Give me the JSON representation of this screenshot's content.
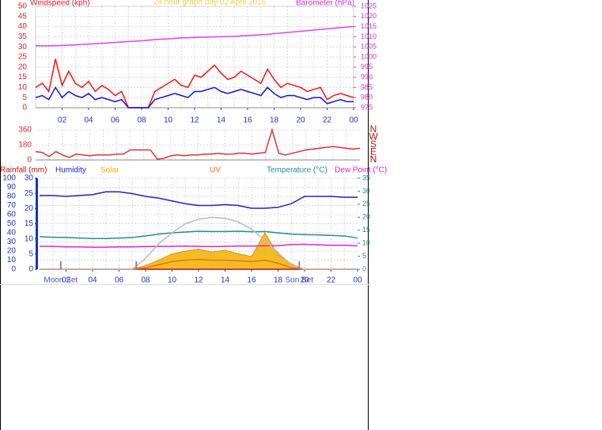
{
  "chart_data": [
    {
      "type": "line",
      "title": "24 hour graph day 02 April 2016",
      "title_color": "#e6d24a",
      "ylabel": "Windspeed (kph)",
      "ycolor": "#e0202a",
      "y2label": "Barometer (hPa)",
      "y2color": "#d030d0",
      "xcolor": "#2030c0",
      "xlim": [
        0,
        24
      ],
      "xticks": [
        {
          "value": 2,
          "label": "02"
        },
        {
          "value": 4,
          "label": "04"
        },
        {
          "value": 6,
          "label": "06"
        },
        {
          "value": 8,
          "label": "08"
        },
        10,
        12,
        14,
        16,
        18,
        20,
        22,
        {
          "value": 24,
          "label": "00"
        }
      ],
      "ylim": [
        0,
        50
      ],
      "yticks": [
        0,
        5,
        10,
        15,
        20,
        25,
        30,
        35,
        40,
        45,
        50
      ],
      "y2lim": [
        975,
        1025
      ],
      "y2ticks": [
        975,
        980,
        985,
        990,
        995,
        1000,
        1005,
        1010,
        1015,
        1020,
        1025
      ],
      "grid": true,
      "x": [
        0,
        0.5,
        1,
        1.5,
        2,
        2.5,
        3,
        3.5,
        4,
        4.5,
        5,
        5.5,
        6,
        6.5,
        7,
        7.5,
        8,
        8.5,
        9,
        9.5,
        10,
        10.5,
        11,
        11.5,
        12,
        12.5,
        13,
        13.5,
        14,
        14.5,
        15,
        15.5,
        16,
        16.5,
        17,
        17.5,
        18,
        18.5,
        19,
        19.5,
        20,
        20.5,
        21,
        21.5,
        22,
        22.5,
        23,
        23.5,
        24
      ],
      "series": [
        {
          "color": "#ff1010",
          "values": [
            10,
            12,
            8,
            24,
            11,
            18,
            12,
            10,
            13,
            8,
            11,
            9,
            6,
            8,
            0,
            0,
            0,
            0,
            8,
            10,
            12,
            14,
            11,
            10,
            16,
            15,
            18,
            21,
            17,
            14,
            15,
            18,
            16,
            14,
            12,
            19,
            14,
            10,
            12,
            11,
            10,
            8,
            9,
            10,
            4,
            6,
            7,
            6,
            5
          ]
        },
        {
          "color": "#1010e0",
          "values": [
            5,
            6,
            4,
            10,
            5,
            8,
            6,
            5,
            7,
            4,
            5,
            4,
            3,
            4,
            0,
            0,
            0,
            0,
            4,
            5,
            6,
            7,
            6,
            5,
            8,
            8,
            9,
            10,
            8,
            7,
            8,
            9,
            8,
            7,
            6,
            10,
            7,
            5,
            6,
            6,
            5,
            4,
            5,
            5,
            2,
            3,
            4,
            3,
            3
          ]
        },
        {
          "color": "#e040f0",
          "axis": "y2",
          "values": [
            1005.5,
            1005.5,
            1005.5,
            1005.6,
            1005.7,
            1005.8,
            1006,
            1006.2,
            1006.4,
            1006.6,
            1006.8,
            1007,
            1007.2,
            1007.4,
            1007.6,
            1007.8,
            1008,
            1008.3,
            1008.6,
            1008.8,
            1009,
            1009.2,
            1009.4,
            1009.5,
            1009.6,
            1009.7,
            1009.8,
            1009.9,
            1010,
            1010.1,
            1010.2,
            1010.4,
            1010.6,
            1010.8,
            1011,
            1011.2,
            1011.5,
            1011.8,
            1012.1,
            1012.4,
            1012.7,
            1013,
            1013.3,
            1013.6,
            1013.9,
            1014.2,
            1014.5,
            1014.8,
            1015
          ]
        }
      ]
    },
    {
      "type": "line",
      "ycolor": "#e0202a",
      "y2color": "#c01010",
      "xcolor": "#2030c0",
      "xlim": [
        0,
        24
      ],
      "ylim": [
        0,
        360
      ],
      "yticks": [
        0,
        180,
        360
      ],
      "y2lim": [
        0,
        360
      ],
      "y2ticks": [
        {
          "value": 360,
          "label": "N"
        },
        {
          "value": 270,
          "label": "W"
        },
        {
          "value": 180,
          "label": "S"
        },
        {
          "value": 90,
          "label": "E"
        },
        {
          "value": 0,
          "label": "N"
        }
      ],
      "grid": true,
      "x": [
        0,
        0.5,
        1,
        1.5,
        2,
        2.5,
        3,
        3.5,
        4,
        4.5,
        5,
        5.5,
        6,
        6.5,
        7,
        7.5,
        8,
        8.5,
        9,
        9.5,
        10,
        10.5,
        11,
        11.5,
        12,
        12.5,
        13,
        13.5,
        14,
        14.5,
        15,
        15.5,
        16,
        16.5,
        17,
        17.5,
        18,
        18.5,
        19,
        19.5,
        20,
        20.5,
        21,
        21.5,
        22,
        22.5,
        23,
        23.5,
        24
      ],
      "series": [
        {
          "color": "#e03030",
          "values": [
            100,
            90,
            40,
            100,
            60,
            30,
            70,
            60,
            50,
            60,
            60,
            60,
            70,
            70,
            120,
            120,
            120,
            120,
            10,
            20,
            50,
            60,
            50,
            60,
            60,
            70,
            70,
            80,
            70,
            70,
            80,
            80,
            70,
            80,
            90,
            360,
            80,
            60,
            80,
            100,
            120,
            130,
            140,
            150,
            160,
            150,
            140,
            130,
            140
          ]
        }
      ]
    },
    {
      "type": "line",
      "ycolor": "#2030c0",
      "y2color": "#20908a",
      "y3color": "#2030c0",
      "xcolor": "#2030c0",
      "xlim": [
        0,
        24
      ],
      "xticks": [
        {
          "value": 2,
          "label": "02"
        },
        {
          "value": 4,
          "label": "04"
        },
        {
          "value": 6,
          "label": "06"
        },
        {
          "value": 8,
          "label": "08"
        },
        10,
        12,
        14,
        16,
        18,
        20,
        22,
        {
          "value": 24,
          "label": "00"
        }
      ],
      "ylim": [
        0,
        100
      ],
      "yticks": [
        0,
        10,
        20,
        30,
        40,
        50,
        60,
        70,
        80,
        90,
        100
      ],
      "y3lim": [
        0,
        30
      ],
      "y3ticks": [
        0,
        5,
        10,
        15,
        20,
        25,
        30
      ],
      "y2lim": [
        0,
        35
      ],
      "y2ticks": [
        0,
        5,
        10,
        15,
        20,
        25,
        30,
        35
      ],
      "grid": true,
      "x": [
        0,
        1,
        2,
        3,
        4,
        5,
        6,
        7,
        8,
        9,
        10,
        11,
        12,
        13,
        14,
        15,
        16,
        17,
        18,
        19,
        20,
        21,
        22,
        23,
        24
      ],
      "series": [
        {
          "name": "Rainfall (mm)",
          "color": "#c01010",
          "axis": "y3",
          "values": [
            0,
            0,
            0,
            0,
            0,
            0,
            0,
            0,
            0,
            0,
            0,
            0,
            0,
            0,
            0,
            0,
            0,
            0,
            0,
            0,
            0,
            0,
            0,
            0,
            0
          ]
        },
        {
          "name": "Humidity",
          "color": "#2020d0",
          "values": [
            81,
            81,
            80,
            81,
            82,
            85,
            85,
            83,
            80,
            78,
            75,
            72,
            70,
            70,
            71,
            70,
            67,
            67,
            68,
            72,
            80,
            80,
            80,
            79,
            79
          ]
        },
        {
          "name": "Solar",
          "color": "#f0b000",
          "style": "area",
          "values": [
            0,
            0,
            0,
            0,
            0,
            0,
            0,
            0,
            4,
            10,
            17,
            20,
            22,
            19,
            21,
            17,
            14,
            40,
            16,
            6,
            0,
            0,
            0,
            0,
            0
          ]
        },
        {
          "name": "UV",
          "color": "#f07010",
          "axis": "y3",
          "values": [
            0,
            0,
            0,
            0,
            0,
            0,
            0,
            0,
            0.5,
            1.5,
            2.5,
            3,
            3.2,
            3,
            3,
            2.8,
            2.5,
            3,
            2,
            0.5,
            0,
            0,
            0,
            0,
            0
          ]
        },
        {
          "name": "Temperature (°C)",
          "color": "#20908a",
          "axis": "y2",
          "values": [
            12.5,
            12.3,
            12.2,
            12,
            11.8,
            11.8,
            12,
            12.2,
            12.8,
            13.5,
            14,
            14.3,
            14.6,
            14.5,
            14.5,
            14.6,
            14.4,
            14.5,
            14,
            13.5,
            13.3,
            13.2,
            13,
            12.8,
            12
          ]
        },
        {
          "name": "Dew Point (°C)",
          "color": "#e020e0",
          "axis": "y2",
          "values": [
            8.8,
            8.8,
            8.6,
            8.6,
            8.5,
            8.5,
            8.6,
            8.6,
            8.7,
            8.8,
            8.8,
            8.9,
            8.8,
            8.7,
            8.8,
            8.9,
            8.9,
            9,
            9,
            9.5,
            9.6,
            9.4,
            9.2,
            9.2,
            9
          ]
        },
        {
          "color": "#bbbbbb",
          "values": [
            0,
            0,
            0,
            0,
            0,
            0,
            0,
            0,
            12,
            28,
            40,
            50,
            55,
            57,
            56,
            52,
            44,
            32,
            18,
            5,
            0,
            0,
            0,
            0,
            0
          ]
        }
      ],
      "annotations": [
        {
          "label": "Moon Set",
          "x": 1.6
        },
        {
          "x": 7.3
        },
        {
          "label": "Sun Set",
          "x": 19.6
        }
      ]
    }
  ]
}
